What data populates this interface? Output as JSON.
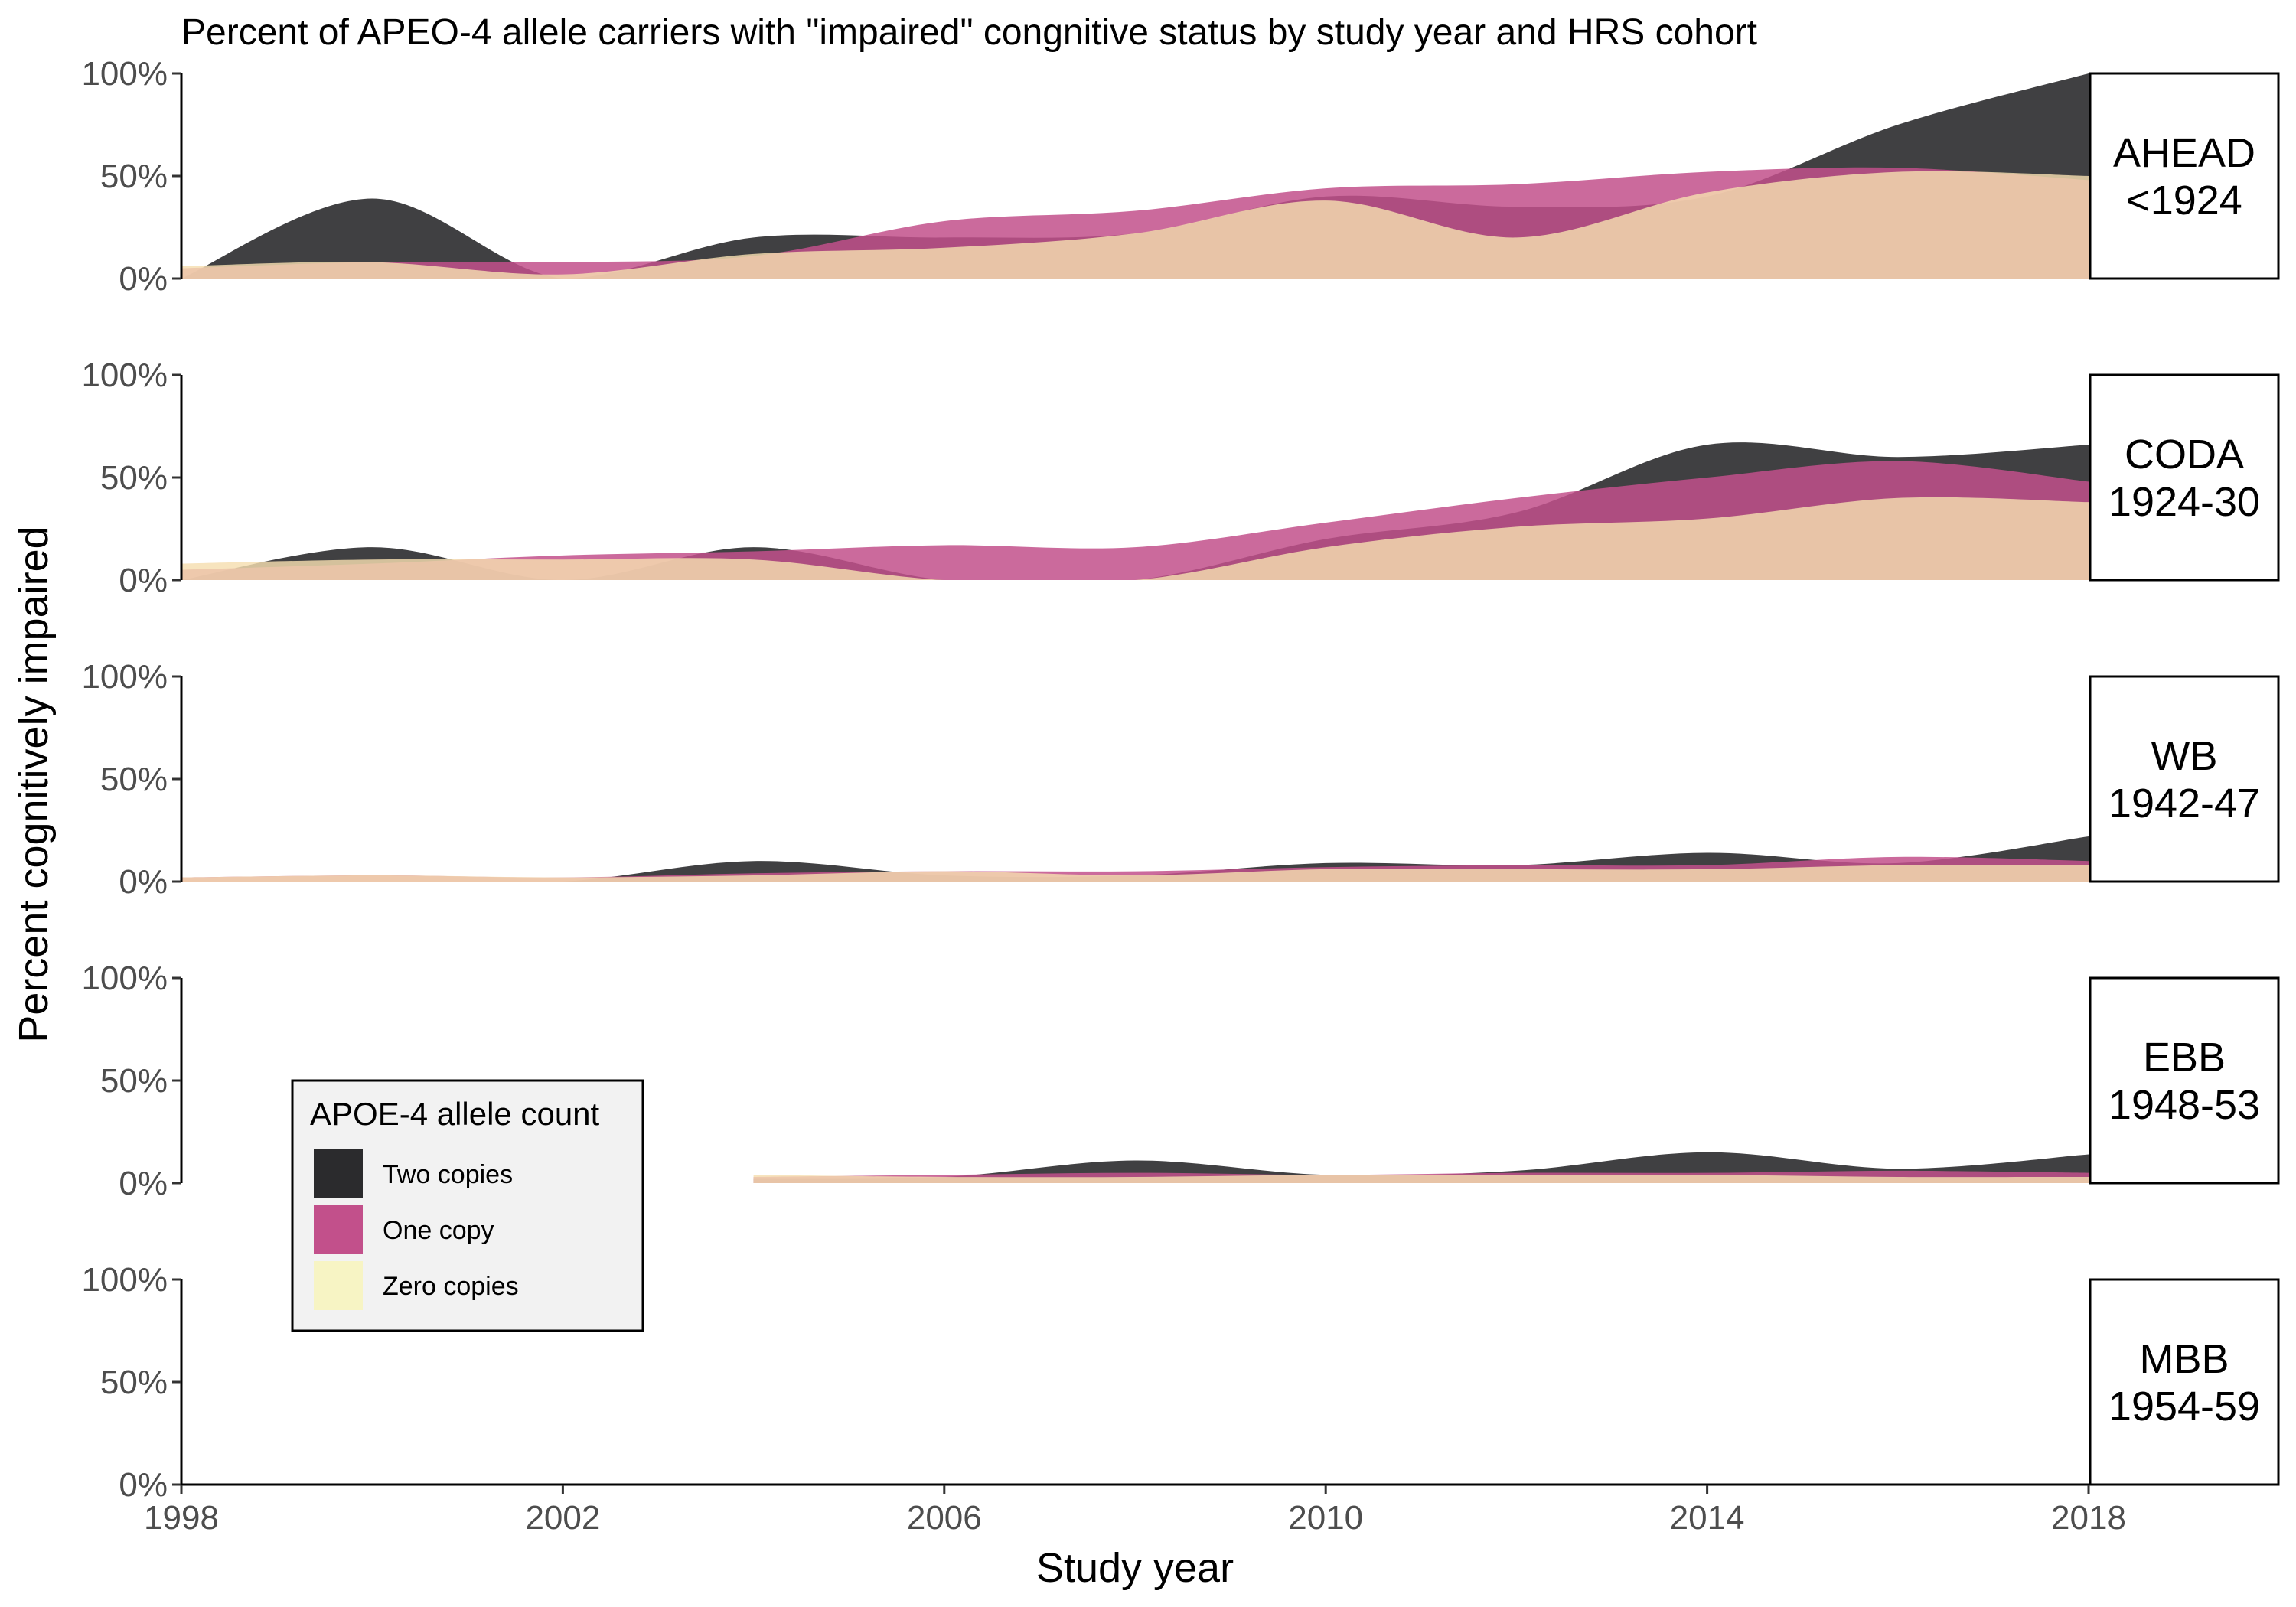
{
  "chart_data": {
    "type": "area",
    "title": "Percent of APEO-4 allele carriers with \"impaired\" congnitive status by study year and HRS cohort",
    "xlabel": "Study year",
    "ylabel": "Percent cognitively impaired",
    "x_ticks": [
      "1998",
      "2002",
      "2006",
      "2010",
      "2014",
      "2018"
    ],
    "y_ticks": [
      "0%",
      "50%",
      "100%"
    ],
    "xlim": [
      1998,
      2020
    ],
    "ylim": [
      0,
      100
    ],
    "grid": false,
    "legend": {
      "title": "APOE-4 allele count",
      "position": "bottom-left",
      "entries": [
        {
          "key": "two",
          "label": "Two copies",
          "color": "#2b2b2d"
        },
        {
          "key": "one",
          "label": "One copy",
          "color": "#c2508b"
        },
        {
          "key": "zero",
          "label": "Zero copies",
          "color": "#f7f4c4"
        }
      ]
    },
    "series_colors": {
      "two": "#2b2b2d",
      "one": "#c2508b",
      "zero": "#f5deb0"
    },
    "panels": [
      {
        "label_lines": [
          "AHEAD",
          "<1924"
        ],
        "series": [
          {
            "key": "zero",
            "x": [
              1998,
              2000,
              2002,
              2004,
              2006,
              2008,
              2010,
              2012,
              2014,
              2016,
              2018
            ],
            "values": [
              6,
              8,
              2,
              12,
              15,
              22,
              38,
              20,
              42,
              52,
              50
            ]
          },
          {
            "key": "one",
            "x": [
              1998,
              2000,
              2002,
              2004,
              2006,
              2008,
              2010,
              2012,
              2014,
              2016,
              2018
            ],
            "values": [
              5,
              8,
              8,
              11,
              28,
              33,
              44,
              46,
              52,
              54,
              48
            ]
          },
          {
            "key": "two",
            "x": [
              1998,
              2000,
              2002,
              2004,
              2006,
              2008,
              2010,
              2012,
              2014,
              2016,
              2018
            ],
            "values": [
              0,
              39,
              0,
              20,
              20,
              22,
              40,
              35,
              40,
              75,
              100
            ]
          }
        ]
      },
      {
        "label_lines": [
          "CODA",
          "1924-30"
        ],
        "series": [
          {
            "key": "zero",
            "x": [
              1998,
              2000,
              2002,
              2004,
              2006,
              2008,
              2010,
              2012,
              2014,
              2016,
              2018
            ],
            "values": [
              8,
              10,
              10,
              10,
              0,
              0,
              16,
              26,
              30,
              40,
              38
            ]
          },
          {
            "key": "one",
            "x": [
              1998,
              2000,
              2002,
              2004,
              2006,
              2008,
              2010,
              2012,
              2014,
              2016,
              2018
            ],
            "values": [
              5,
              8,
              12,
              14,
              17,
              16,
              28,
              40,
              50,
              58,
              48
            ]
          },
          {
            "key": "two",
            "x": [
              1998,
              2000,
              2002,
              2004,
              2006,
              2008,
              2010,
              2012,
              2014,
              2016,
              2018
            ],
            "values": [
              0,
              16,
              0,
              16,
              0,
              0,
              20,
              33,
              66,
              60,
              66
            ]
          }
        ]
      },
      {
        "label_lines": [
          "WB",
          "1942-47"
        ],
        "series": [
          {
            "key": "zero",
            "x": [
              1998,
              2000,
              2002,
              2004,
              2006,
              2008,
              2010,
              2012,
              2014,
              2016,
              2018
            ],
            "values": [
              2,
              3,
              2,
              3,
              5,
              3,
              6,
              6,
              6,
              8,
              8
            ]
          },
          {
            "key": "one",
            "x": [
              1998,
              2000,
              2002,
              2004,
              2006,
              2008,
              2010,
              2012,
              2014,
              2016,
              2018
            ],
            "values": [
              2,
              3,
              2,
              4,
              5,
              5,
              7,
              8,
              8,
              12,
              10
            ]
          },
          {
            "key": "two",
            "x": [
              1998,
              2000,
              2002,
              2004,
              2006,
              2008,
              2010,
              2012,
              2014,
              2016,
              2018
            ],
            "values": [
              0,
              0,
              0,
              10,
              3,
              3,
              9,
              8,
              14,
              9,
              22
            ]
          }
        ]
      },
      {
        "label_lines": [
          "EBB",
          "1948-53"
        ],
        "series": [
          {
            "key": "zero",
            "x": [
              2004,
              2006,
              2008,
              2010,
              2012,
              2014,
              2016,
              2018
            ],
            "values": [
              4,
              3,
              3,
              4,
              4,
              4,
              3,
              3
            ]
          },
          {
            "key": "one",
            "x": [
              2004,
              2006,
              2008,
              2010,
              2012,
              2014,
              2016,
              2018
            ],
            "values": [
              3,
              4,
              5,
              4,
              5,
              5,
              6,
              5
            ]
          },
          {
            "key": "two",
            "x": [
              2004,
              2006,
              2008,
              2010,
              2012,
              2014,
              2016,
              2018
            ],
            "values": [
              2,
              3,
              11,
              4,
              6,
              15,
              7,
              14
            ]
          }
        ]
      },
      {
        "label_lines": [
          "MBB",
          "1954-59"
        ],
        "series": []
      }
    ]
  }
}
